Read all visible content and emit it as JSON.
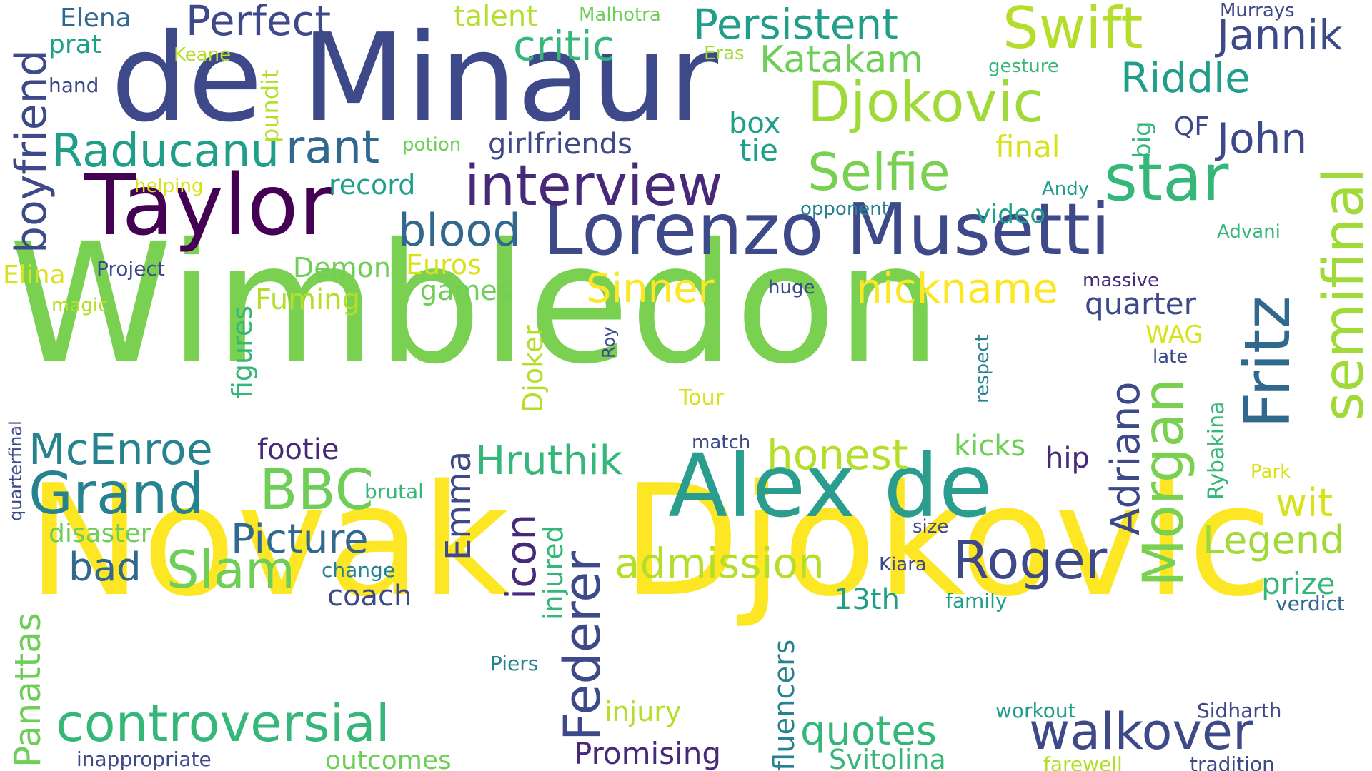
{
  "words": [
    "Wimbledon",
    "Novak",
    "Djokovic",
    "de Minaur",
    "Alex de",
    "Taylor",
    "Lorenzo Musetti",
    "interview",
    "semifinal",
    "Fritz",
    "star",
    "Djokovic",
    "Swift",
    "Selfie",
    "Morgan",
    "Federer",
    "Roger",
    "walkover",
    "controversial",
    "Raducanu",
    "rant",
    "blood",
    "Grand",
    "Slam",
    "BBC",
    "McEnroe",
    "boyfriend",
    "Perfect",
    "Persistent",
    "critic",
    "Katakam",
    "Jannik",
    "Riddle",
    "John",
    "nickname",
    "Sinner",
    "honest",
    "Hruthik",
    "admission",
    "Legend",
    "Picture",
    "icon",
    "Adriano",
    "quotes",
    "Promising",
    "Panattas",
    "wit",
    "prize",
    "record",
    "girlfriends",
    "box",
    "tie",
    "final",
    "Euros",
    "Demon",
    "games",
    "Fuming",
    "figures",
    "footie",
    "bad",
    "disaster",
    "coach",
    "outcomes",
    "Svitolina",
    "Emma",
    "injured",
    "fluencers",
    "quarter",
    "kicks",
    "hip",
    "13th",
    "Djoker",
    "Rybakina",
    "respect",
    "injury",
    "video",
    "Elena",
    "prat",
    "hand",
    "Keane",
    "pundit",
    "talent",
    "Malhotra",
    "Eras",
    "gesture",
    "Murrays",
    "QF",
    "big",
    "Andy",
    "opponent",
    "Advani",
    "massive",
    "huge",
    "potion",
    "helping",
    "Elina",
    "Project",
    "magic",
    "Roy",
    "WAG",
    "late",
    "Tour",
    "match",
    "brutal",
    "Park",
    "size",
    "Kiara",
    "change",
    "family",
    "verdict",
    "Piers",
    "workout",
    "Sidharth",
    "inappropriate",
    "farewell",
    "tradition",
    "quarterfinal"
  ],
  "colors": {
    "yellow": "#fde725",
    "lightgreen": "#b5de2b",
    "green": "#6ece58",
    "teal_green": "#35b779",
    "teal": "#1f9e89",
    "blue_teal": "#26828e",
    "blue": "#31688e",
    "indigo": "#3e4989",
    "purple": "#482878",
    "dark_purple": "#440154"
  }
}
